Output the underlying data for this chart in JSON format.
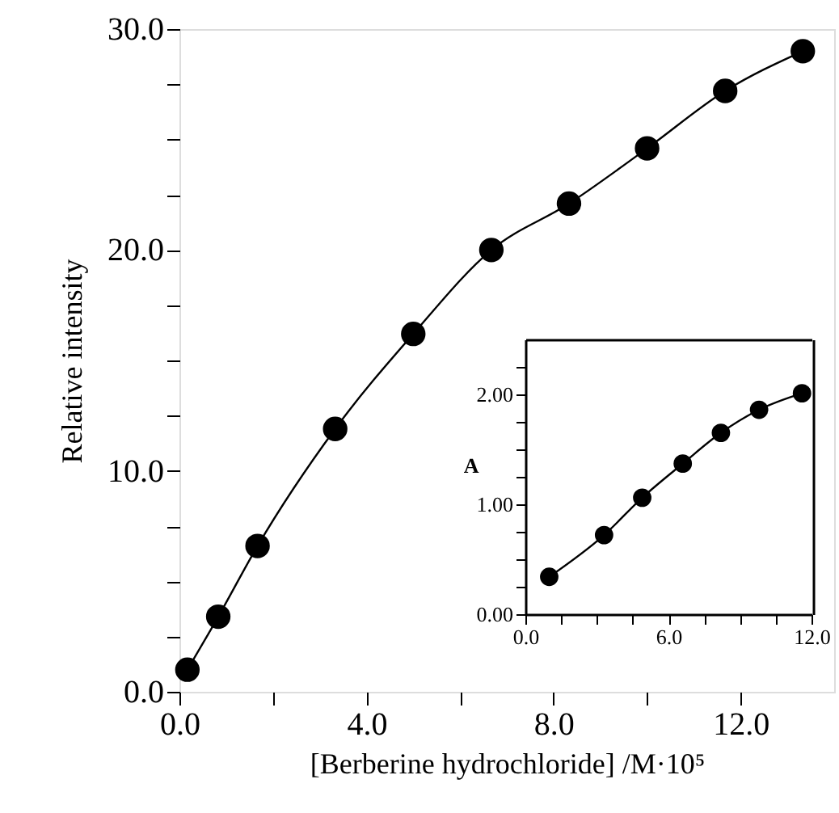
{
  "chart_data": [
    {
      "type": "line",
      "xlabel": "[Berberine hydrochloride] /M·10⁵",
      "ylabel": "Relative intensity",
      "marker": "circle",
      "line_style": "solid",
      "grid": false,
      "x": [
        0.17,
        0.83,
        1.67,
        3.33,
        5.0,
        6.67,
        8.33,
        10.0,
        11.67,
        13.33
      ],
      "series": [
        {
          "color": "#000000",
          "values": [
            1.0,
            3.4,
            6.6,
            11.9,
            16.2,
            20.0,
            22.1,
            24.6,
            27.2,
            29.0
          ]
        }
      ],
      "xlim": [
        0,
        14
      ],
      "ylim": [
        0,
        30
      ],
      "xticks": [
        {
          "value": 0,
          "label": "0.0"
        },
        {
          "value": 2,
          "label": null
        },
        {
          "value": 4,
          "label": "4.0"
        },
        {
          "value": 6,
          "label": null
        },
        {
          "value": 8,
          "label": "8.0"
        },
        {
          "value": 10,
          "label": null
        },
        {
          "value": 12,
          "label": "12.0"
        }
      ],
      "yticks": [
        {
          "value": 0,
          "label": "0.0"
        },
        {
          "value": 2.5,
          "label": null
        },
        {
          "value": 5,
          "label": null
        },
        {
          "value": 7.5,
          "label": null
        },
        {
          "value": 10,
          "label": "10.0"
        },
        {
          "value": 12.5,
          "label": null
        },
        {
          "value": 15,
          "label": null
        },
        {
          "value": 17.5,
          "label": null
        },
        {
          "value": 20,
          "label": "20.0"
        },
        {
          "value": 22.5,
          "label": null
        },
        {
          "value": 25,
          "label": null
        },
        {
          "value": 27.5,
          "label": null
        },
        {
          "value": 30,
          "label": "30.0"
        }
      ]
    },
    {
      "type": "line",
      "ylabel": "A",
      "marker": "circle",
      "line_style": "solid",
      "grid": false,
      "x": [
        1.0,
        3.3,
        4.9,
        6.6,
        8.2,
        9.8,
        11.6
      ],
      "series": [
        {
          "color": "#000000",
          "values": [
            0.34,
            0.72,
            1.06,
            1.37,
            1.65,
            1.86,
            2.01
          ]
        }
      ],
      "xlim": [
        0,
        12
      ],
      "ylim": [
        0,
        2.5
      ],
      "xticks": [
        {
          "value": 0,
          "label": "0.0"
        },
        {
          "value": 1.5,
          "label": null
        },
        {
          "value": 3,
          "label": null
        },
        {
          "value": 4.5,
          "label": null
        },
        {
          "value": 6,
          "label": "6.0"
        },
        {
          "value": 7.5,
          "label": null
        },
        {
          "value": 9,
          "label": null
        },
        {
          "value": 10.5,
          "label": null
        },
        {
          "value": 12,
          "label": "12.0"
        }
      ],
      "yticks": [
        {
          "value": 0,
          "label": "0.00"
        },
        {
          "value": 0.25,
          "label": null
        },
        {
          "value": 0.5,
          "label": null
        },
        {
          "value": 0.75,
          "label": null
        },
        {
          "value": 1,
          "label": "1.00"
        },
        {
          "value": 1.25,
          "label": null
        },
        {
          "value": 1.5,
          "label": null
        },
        {
          "value": 1.75,
          "label": null
        },
        {
          "value": 2,
          "label": "2.00"
        },
        {
          "value": 2.25,
          "label": null
        }
      ]
    }
  ]
}
